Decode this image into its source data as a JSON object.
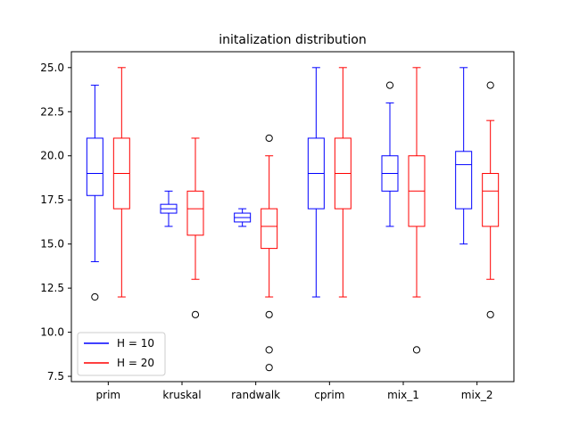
{
  "chart_data": {
    "type": "box",
    "title": "initalization distribution",
    "xlabel": "",
    "ylabel": "",
    "ylim": [
      7.2,
      25.9
    ],
    "yticks": [
      7.5,
      10.0,
      12.5,
      15.0,
      17.5,
      20.0,
      22.5,
      25.0
    ],
    "ytick_labels": [
      "7.5",
      "10.0",
      "12.5",
      "15.0",
      "17.5",
      "20.0",
      "22.5",
      "25.0"
    ],
    "categories": [
      "prim",
      "kruskal",
      "randwalk",
      "cprim",
      "mix_1",
      "mix_2"
    ],
    "grid": false,
    "legend_position": "lower-left",
    "series": [
      {
        "name": "H = 10",
        "color": "#0000ff",
        "boxes": [
          {
            "whislo": 14,
            "q1": 17.75,
            "med": 19,
            "q3": 21,
            "whishi": 24,
            "fliers": [
              12
            ]
          },
          {
            "whislo": 16,
            "q1": 16.75,
            "med": 17,
            "q3": 17.25,
            "whishi": 18,
            "fliers": []
          },
          {
            "whislo": 16,
            "q1": 16.25,
            "med": 16.5,
            "q3": 16.75,
            "whishi": 17,
            "fliers": []
          },
          {
            "whislo": 12,
            "q1": 17,
            "med": 19,
            "q3": 21,
            "whishi": 25,
            "fliers": []
          },
          {
            "whislo": 16,
            "q1": 18,
            "med": 19,
            "q3": 20,
            "whishi": 23,
            "fliers": [
              24
            ]
          },
          {
            "whislo": 15,
            "q1": 17,
            "med": 19.5,
            "q3": 20.25,
            "whishi": 25,
            "fliers": []
          }
        ]
      },
      {
        "name": "H = 20",
        "color": "#ff0000",
        "boxes": [
          {
            "whislo": 12,
            "q1": 17,
            "med": 19,
            "q3": 21,
            "whishi": 25,
            "fliers": []
          },
          {
            "whislo": 13,
            "q1": 15.5,
            "med": 17,
            "q3": 18,
            "whishi": 21,
            "fliers": [
              11
            ]
          },
          {
            "whislo": 12,
            "q1": 14.75,
            "med": 16,
            "q3": 17,
            "whishi": 20,
            "fliers": [
              21,
              11,
              9,
              8
            ]
          },
          {
            "whislo": 12,
            "q1": 17,
            "med": 19,
            "q3": 21,
            "whishi": 25,
            "fliers": []
          },
          {
            "whislo": 12,
            "q1": 16,
            "med": 18,
            "q3": 20,
            "whishi": 25,
            "fliers": [
              9
            ]
          },
          {
            "whislo": 13,
            "q1": 16,
            "med": 18,
            "q3": 19,
            "whishi": 22,
            "fliers": [
              24,
              11
            ]
          }
        ]
      }
    ]
  }
}
